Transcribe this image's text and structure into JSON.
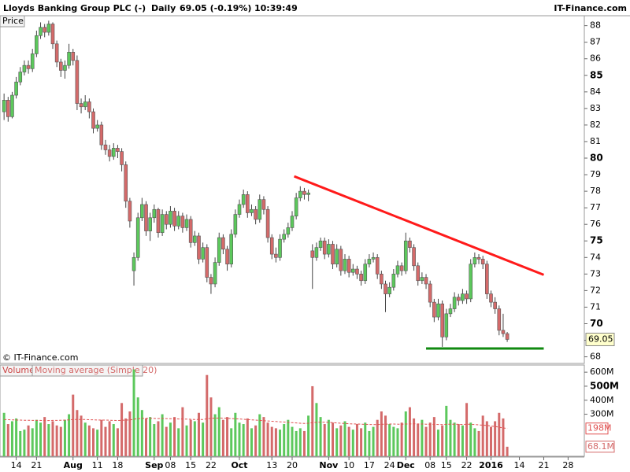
{
  "chart_data": {
    "type": "candlestick",
    "title": "Lloyds Banking Group PLC (-)",
    "interval": "Daily",
    "quote": "69.05 (-0.19%)",
    "time": "10:39:49",
    "source": "IT-Finance.com",
    "price_label": "Price",
    "copyright": "© IT-Finance.com",
    "volume_label": "Volume",
    "ma_name": "Moving average (Simple 20)",
    "ma_value_label": "198M",
    "last_volume_label": "68.1M",
    "up_color": "#5cc85c",
    "down_color": "#d46a6a",
    "ma_color": "#e05050",
    "xlim": [
      -1,
      143
    ],
    "xticks": [
      {
        "value": 3,
        "label": "14"
      },
      {
        "value": 8,
        "label": "21"
      },
      {
        "value": 17,
        "label": "Aug"
      },
      {
        "value": 23,
        "label": "11"
      },
      {
        "value": 28,
        "label": "18"
      },
      {
        "value": 37,
        "label": "Sep"
      },
      {
        "value": 41,
        "label": "08"
      },
      {
        "value": 46,
        "label": "15"
      },
      {
        "value": 51,
        "label": "22"
      },
      {
        "value": 58,
        "label": "Oct"
      },
      {
        "value": 66,
        "label": "13"
      },
      {
        "value": 71,
        "label": "20"
      },
      {
        "value": 80,
        "label": "Nov"
      },
      {
        "value": 85,
        "label": "10"
      },
      {
        "value": 90,
        "label": "17"
      },
      {
        "value": 95,
        "label": "24"
      },
      {
        "value": 99,
        "label": "Dec"
      },
      {
        "value": 105,
        "label": "08"
      },
      {
        "value": 109,
        "label": "15"
      },
      {
        "value": 114,
        "label": "22"
      },
      {
        "value": 120,
        "label": "2016"
      },
      {
        "value": 127,
        "label": "14"
      },
      {
        "value": 133,
        "label": "21"
      },
      {
        "value": 139,
        "label": "28"
      }
    ],
    "ylim": [
      67.6,
      88.6
    ],
    "yticks": [
      68,
      69,
      70,
      71,
      72,
      73,
      74,
      75,
      76,
      77,
      78,
      79,
      80,
      81,
      82,
      83,
      84,
      85,
      86,
      87,
      88
    ],
    "volume_ylim": [
      0,
      640
    ],
    "volume_yticks": [
      {
        "value": 300,
        "label": "300M"
      },
      {
        "value": 400,
        "label": "400M"
      },
      {
        "value": 500,
        "label": "500M"
      },
      {
        "value": 600,
        "label": "600M"
      }
    ],
    "ohlc": [
      [
        82.8,
        83.9,
        82.3,
        83.5
      ],
      [
        83.5,
        83.7,
        82.2,
        82.5
      ],
      [
        82.5,
        84.0,
        82.4,
        83.8
      ],
      [
        83.8,
        84.9,
        83.6,
        84.6
      ],
      [
        84.6,
        85.5,
        84.4,
        85.2
      ],
      [
        85.2,
        85.9,
        85.0,
        85.6
      ],
      [
        85.6,
        85.9,
        85.1,
        85.4
      ],
      [
        85.4,
        86.6,
        85.2,
        86.3
      ],
      [
        86.3,
        87.7,
        86.1,
        87.4
      ],
      [
        87.4,
        88.2,
        87.2,
        87.9
      ],
      [
        87.9,
        88.1,
        87.3,
        87.6
      ],
      [
        87.6,
        88.3,
        87.4,
        88.1
      ],
      [
        88.1,
        88.2,
        86.6,
        86.9
      ],
      [
        86.9,
        87.1,
        85.5,
        85.8
      ],
      [
        85.8,
        86.0,
        84.9,
        85.3
      ],
      [
        85.3,
        85.9,
        84.8,
        85.6
      ],
      [
        85.6,
        86.9,
        85.4,
        86.4
      ],
      [
        86.4,
        86.6,
        85.6,
        85.9
      ],
      [
        85.9,
        86.2,
        82.9,
        83.3
      ],
      [
        83.3,
        83.6,
        82.7,
        83.1
      ],
      [
        83.1,
        83.8,
        82.9,
        83.4
      ],
      [
        83.4,
        83.6,
        82.4,
        82.8
      ],
      [
        82.8,
        83.0,
        81.5,
        81.8
      ],
      [
        81.8,
        82.3,
        81.6,
        82.0
      ],
      [
        82.0,
        82.2,
        80.5,
        80.8
      ],
      [
        80.8,
        81.1,
        80.2,
        80.5
      ],
      [
        80.5,
        80.8,
        79.8,
        80.1
      ],
      [
        80.1,
        80.9,
        79.9,
        80.6
      ],
      [
        80.6,
        80.8,
        80.0,
        80.4
      ],
      [
        80.4,
        80.6,
        79.2,
        79.6
      ],
      [
        79.6,
        79.8,
        77.0,
        77.4
      ],
      [
        77.4,
        77.6,
        75.8,
        76.2
      ],
      [
        73.2,
        74.3,
        72.3,
        74.0
      ],
      [
        74.0,
        76.7,
        73.8,
        76.4
      ],
      [
        76.4,
        77.6,
        76.2,
        77.2
      ],
      [
        77.2,
        77.4,
        75.3,
        75.6
      ],
      [
        75.6,
        76.7,
        75.0,
        76.4
      ],
      [
        76.4,
        77.2,
        76.1,
        76.9
      ],
      [
        76.9,
        77.0,
        75.2,
        75.5
      ],
      [
        75.5,
        76.9,
        75.3,
        76.6
      ],
      [
        76.6,
        76.8,
        75.7,
        76.0
      ],
      [
        76.0,
        77.1,
        75.8,
        76.8
      ],
      [
        76.8,
        77.0,
        75.6,
        75.9
      ],
      [
        75.9,
        76.8,
        75.7,
        76.5
      ],
      [
        76.5,
        76.7,
        75.5,
        75.8
      ],
      [
        75.8,
        76.6,
        75.6,
        76.3
      ],
      [
        76.3,
        76.5,
        74.6,
        74.9
      ],
      [
        74.9,
        75.6,
        74.7,
        75.3
      ],
      [
        75.3,
        75.5,
        73.6,
        73.9
      ],
      [
        73.9,
        74.9,
        73.7,
        74.6
      ],
      [
        74.6,
        74.8,
        72.5,
        72.8
      ],
      [
        72.8,
        73.0,
        71.8,
        72.4
      ],
      [
        72.4,
        74.0,
        72.2,
        73.7
      ],
      [
        73.7,
        75.5,
        73.5,
        75.2
      ],
      [
        75.2,
        75.4,
        74.2,
        74.5
      ],
      [
        74.5,
        74.7,
        73.2,
        73.6
      ],
      [
        73.6,
        75.7,
        73.4,
        75.4
      ],
      [
        75.4,
        76.9,
        75.2,
        76.6
      ],
      [
        76.6,
        77.5,
        76.4,
        77.2
      ],
      [
        77.2,
        78.1,
        77.0,
        77.8
      ],
      [
        77.8,
        78.0,
        76.4,
        76.7
      ],
      [
        76.7,
        77.2,
        76.5,
        76.9
      ],
      [
        76.9,
        77.1,
        76.0,
        76.3
      ],
      [
        76.3,
        77.8,
        76.1,
        77.5
      ],
      [
        77.5,
        77.7,
        76.6,
        76.9
      ],
      [
        76.9,
        77.1,
        74.9,
        75.2
      ],
      [
        75.2,
        75.4,
        73.9,
        74.2
      ],
      [
        74.2,
        74.6,
        73.7,
        74.0
      ],
      [
        74.0,
        75.4,
        73.8,
        75.1
      ],
      [
        75.1,
        75.7,
        74.9,
        75.4
      ],
      [
        75.4,
        76.1,
        75.2,
        75.8
      ],
      [
        75.8,
        76.8,
        75.6,
        76.5
      ],
      [
        76.5,
        77.9,
        76.3,
        77.6
      ],
      [
        77.6,
        78.3,
        77.4,
        78.0
      ],
      [
        78.0,
        78.2,
        77.5,
        77.8
      ],
      [
        77.8,
        78.1,
        77.4,
        77.9
      ],
      [
        74.4,
        74.8,
        72.1,
        74.0
      ],
      [
        74.0,
        74.9,
        73.8,
        74.6
      ],
      [
        74.6,
        75.2,
        74.4,
        75.0
      ],
      [
        75.0,
        75.2,
        73.9,
        74.2
      ],
      [
        74.2,
        75.1,
        74.0,
        74.8
      ],
      [
        74.8,
        75.0,
        73.3,
        73.6
      ],
      [
        73.6,
        74.8,
        73.4,
        74.5
      ],
      [
        74.5,
        74.7,
        72.9,
        73.2
      ],
      [
        73.2,
        74.2,
        73.0,
        73.9
      ],
      [
        73.9,
        74.1,
        72.8,
        73.1
      ],
      [
        73.1,
        73.6,
        72.9,
        73.3
      ],
      [
        73.3,
        73.5,
        72.7,
        73.0
      ],
      [
        73.0,
        73.2,
        72.3,
        72.6
      ],
      [
        72.6,
        73.9,
        72.4,
        73.6
      ],
      [
        73.6,
        74.2,
        73.4,
        73.9
      ],
      [
        73.9,
        74.3,
        73.7,
        74.0
      ],
      [
        74.0,
        74.2,
        72.7,
        73.0
      ],
      [
        73.0,
        73.2,
        72.1,
        72.4
      ],
      [
        72.4,
        72.6,
        70.7,
        71.8
      ],
      [
        71.8,
        72.5,
        71.6,
        72.2
      ],
      [
        72.2,
        73.3,
        72.0,
        73.0
      ],
      [
        73.0,
        73.8,
        72.8,
        73.5
      ],
      [
        73.5,
        73.7,
        72.9,
        73.2
      ],
      [
        73.2,
        75.5,
        73.0,
        75.0
      ],
      [
        75.0,
        75.2,
        74.3,
        74.6
      ],
      [
        74.6,
        74.8,
        73.2,
        73.5
      ],
      [
        73.5,
        73.7,
        72.3,
        72.6
      ],
      [
        72.6,
        73.1,
        72.4,
        72.8
      ],
      [
        72.8,
        73.0,
        72.1,
        72.4
      ],
      [
        72.4,
        72.6,
        71.0,
        71.3
      ],
      [
        71.3,
        71.5,
        70.1,
        70.4
      ],
      [
        70.4,
        71.5,
        70.2,
        71.2
      ],
      [
        71.2,
        71.4,
        68.6,
        69.2
      ],
      [
        69.2,
        70.9,
        69.0,
        70.6
      ],
      [
        70.6,
        71.2,
        70.4,
        70.9
      ],
      [
        70.9,
        71.9,
        70.7,
        71.6
      ],
      [
        71.6,
        71.8,
        71.1,
        71.4
      ],
      [
        71.4,
        72.1,
        71.2,
        71.8
      ],
      [
        71.8,
        72.0,
        71.2,
        71.5
      ],
      [
        71.5,
        73.9,
        71.3,
        73.6
      ],
      [
        73.6,
        74.3,
        73.4,
        74.0
      ],
      [
        74.0,
        74.2,
        73.6,
        73.9
      ],
      [
        73.9,
        74.1,
        73.3,
        73.6
      ],
      [
        73.6,
        73.8,
        71.5,
        71.8
      ],
      [
        71.8,
        72.0,
        71.0,
        71.3
      ],
      [
        71.3,
        71.6,
        70.6,
        70.9
      ],
      [
        70.9,
        71.1,
        69.3,
        69.6
      ],
      [
        69.6,
        70.6,
        69.2,
        69.4
      ],
      [
        69.4,
        69.5,
        68.9,
        69.05
      ]
    ],
    "volume": [
      310,
      230,
      250,
      270,
      180,
      190,
      220,
      200,
      260,
      240,
      280,
      230,
      250,
      220,
      210,
      260,
      300,
      440,
      330,
      290,
      240,
      220,
      200,
      190,
      260,
      210,
      250,
      230,
      200,
      380,
      270,
      320,
      620,
      420,
      330,
      270,
      280,
      230,
      250,
      300,
      210,
      240,
      280,
      200,
      350,
      220,
      260,
      250,
      310,
      240,
      580,
      420,
      300,
      350,
      260,
      280,
      200,
      310,
      240,
      230,
      270,
      200,
      220,
      300,
      280,
      240,
      210,
      200,
      190,
      230,
      260,
      210,
      180,
      200,
      180,
      290,
      500,
      380,
      280,
      230,
      260,
      240,
      200,
      220,
      250,
      210,
      190,
      230,
      200,
      240,
      180,
      210,
      260,
      320,
      290,
      230,
      210,
      200,
      240,
      320,
      350,
      270,
      230,
      260,
      210,
      240,
      280,
      190,
      220,
      360,
      260,
      240,
      230,
      220,
      380,
      240,
      200,
      180,
      290,
      250,
      210,
      250,
      310,
      270,
      68.1
    ],
    "ma": [
      262,
      261,
      260,
      259,
      258,
      257,
      257,
      256,
      256,
      256,
      255,
      255,
      256,
      256,
      257,
      258,
      260,
      262,
      263,
      263,
      262,
      261,
      260,
      259,
      258,
      258,
      257,
      256,
      255,
      257,
      258,
      259,
      265,
      268,
      270,
      271,
      271,
      270,
      269,
      270,
      269,
      268,
      267,
      266,
      266,
      265,
      264,
      263,
      263,
      262,
      268,
      271,
      272,
      273,
      272,
      271,
      269,
      268,
      266,
      264,
      262,
      260,
      258,
      256,
      254,
      252,
      250,
      248,
      246,
      244,
      242,
      240,
      238,
      236,
      234,
      236,
      240,
      242,
      243,
      243,
      242,
      240,
      238,
      236,
      234,
      232,
      231,
      230,
      229,
      228,
      227,
      226,
      227,
      228,
      229,
      230,
      230,
      229,
      229,
      230,
      231,
      232,
      231,
      230,
      229,
      228,
      228,
      227,
      226,
      228,
      229,
      229,
      228,
      227,
      229,
      228,
      226,
      224,
      222,
      220,
      216,
      212,
      207,
      202,
      198
    ],
    "trendlines": [
      {
        "color": "#ff1a1a",
        "x": [
          71.5,
          133
        ],
        "y": [
          78.9,
          72.95
        ]
      },
      {
        "color": "#108a10",
        "x": [
          104,
          133
        ],
        "y": [
          68.5,
          68.5
        ]
      }
    ]
  }
}
